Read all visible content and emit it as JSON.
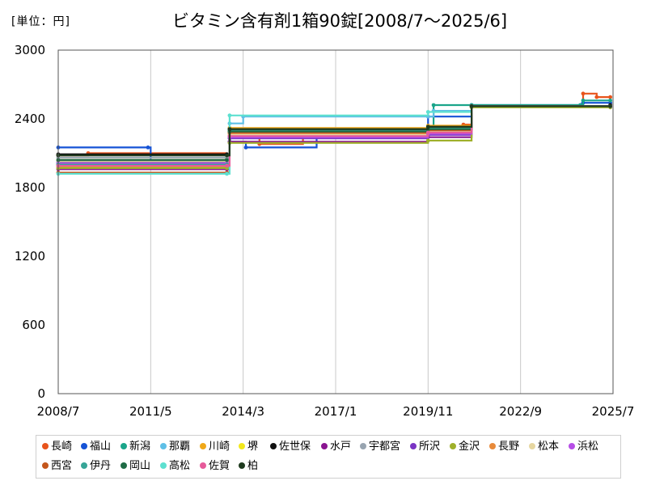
{
  "unit_label": "[単位：円]",
  "chart_data": {
    "type": "line",
    "title": "ビタミン含有剤1箱90錠[2008/7～2025/6]",
    "xlabel": "",
    "ylabel": "",
    "x_ticks": [
      "2008/7",
      "2011/5",
      "2014/3",
      "2017/1",
      "2019/11",
      "2022/9",
      "2025/7"
    ],
    "y_ticks": [
      0,
      600,
      1200,
      1800,
      2400,
      3000
    ],
    "ylim": [
      0,
      3000
    ],
    "xlim": [
      "2008/7",
      "2025/7"
    ],
    "grid": "vertical",
    "legend_position": "bottom",
    "series": [
      {
        "name": "長崎",
        "color": "#e8541c",
        "points": [
          [
            "2008/7",
            2080
          ],
          [
            "2009/6",
            2100
          ],
          [
            "2013/9",
            2050
          ],
          [
            "2013/10",
            2260
          ],
          [
            "2014/9",
            2180
          ],
          [
            "2016/1",
            2250
          ],
          [
            "2019/11",
            2300
          ],
          [
            "2020/12",
            2350
          ],
          [
            "2021/3",
            2510
          ],
          [
            "2024/7",
            2510
          ],
          [
            "2024/8",
            2620
          ],
          [
            "2025/1",
            2590
          ],
          [
            "2025/6",
            2590
          ]
        ]
      },
      {
        "name": "福山",
        "color": "#1553d6",
        "points": [
          [
            "2008/7",
            2150
          ],
          [
            "2011/4",
            2150
          ],
          [
            "2011/5",
            2030
          ],
          [
            "2013/9",
            2030
          ],
          [
            "2013/10",
            2200
          ],
          [
            "2014/4",
            2150
          ],
          [
            "2016/6",
            2280
          ],
          [
            "2019/10",
            2290
          ],
          [
            "2019/11",
            2420
          ],
          [
            "2021/3",
            2520
          ],
          [
            "2024/7",
            2520
          ],
          [
            "2024/8",
            2540
          ],
          [
            "2025/6",
            2540
          ]
        ]
      },
      {
        "name": "新潟",
        "color": "#1aa58a",
        "points": [
          [
            "2008/7",
            2000
          ],
          [
            "2013/9",
            2000
          ],
          [
            "2013/10",
            2300
          ],
          [
            "2019/11",
            2320
          ],
          [
            "2020/1",
            2520
          ],
          [
            "2021/3",
            2520
          ],
          [
            "2024/7",
            2520
          ],
          [
            "2024/8",
            2560
          ],
          [
            "2025/6",
            2560
          ]
        ]
      },
      {
        "name": "那覇",
        "color": "#5fbfe6",
        "points": [
          [
            "2008/7",
            2010
          ],
          [
            "2013/9",
            2010
          ],
          [
            "2013/10",
            2360
          ],
          [
            "2014/3",
            2420
          ],
          [
            "2019/11",
            2420
          ],
          [
            "2020/1",
            2470
          ],
          [
            "2021/3",
            2510
          ],
          [
            "2025/6",
            2510
          ]
        ]
      },
      {
        "name": "川崎",
        "color": "#f0a818",
        "points": [
          [
            "2008/7",
            1980
          ],
          [
            "2013/9",
            1980
          ],
          [
            "2013/10",
            2320
          ],
          [
            "2019/11",
            2340
          ],
          [
            "2021/3",
            2510
          ],
          [
            "2025/6",
            2510
          ]
        ]
      },
      {
        "name": "堺",
        "color": "#f2e81c",
        "points": [
          [
            "2008/7",
            2040
          ],
          [
            "2013/9",
            2040
          ],
          [
            "2013/10",
            2290
          ],
          [
            "2019/11",
            2310
          ],
          [
            "2021/3",
            2510
          ],
          [
            "2025/6",
            2510
          ]
        ]
      },
      {
        "name": "佐世保",
        "color": "#111111",
        "points": [
          [
            "2008/7",
            2090
          ],
          [
            "2013/9",
            2090
          ],
          [
            "2013/10",
            2310
          ],
          [
            "2019/11",
            2330
          ],
          [
            "2021/3",
            2510
          ],
          [
            "2025/6",
            2520
          ]
        ]
      },
      {
        "name": "水戸",
        "color": "#8a1590",
        "points": [
          [
            "2008/7",
            1960
          ],
          [
            "2013/9",
            1960
          ],
          [
            "2013/10",
            2200
          ],
          [
            "2019/11",
            2240
          ],
          [
            "2021/3",
            2510
          ],
          [
            "2025/6",
            2510
          ]
        ]
      },
      {
        "name": "宇都宮",
        "color": "#98a4b0",
        "points": [
          [
            "2008/7",
            2060
          ],
          [
            "2013/9",
            2060
          ],
          [
            "2013/10",
            2250
          ],
          [
            "2019/11",
            2280
          ],
          [
            "2021/3",
            2510
          ],
          [
            "2025/6",
            2510
          ]
        ]
      },
      {
        "name": "所沢",
        "color": "#7a34c4",
        "points": [
          [
            "2008/7",
            2020
          ],
          [
            "2013/9",
            2020
          ],
          [
            "2013/10",
            2230
          ],
          [
            "2019/11",
            2260
          ],
          [
            "2021/3",
            2510
          ],
          [
            "2025/6",
            2510
          ]
        ]
      },
      {
        "name": "金沢",
        "color": "#9fb02a",
        "points": [
          [
            "2008/7",
            1970
          ],
          [
            "2013/9",
            1970
          ],
          [
            "2013/10",
            2190
          ],
          [
            "2019/11",
            2210
          ],
          [
            "2021/3",
            2500
          ],
          [
            "2025/6",
            2500
          ]
        ]
      },
      {
        "name": "長野",
        "color": "#e88a3a",
        "points": [
          [
            "2008/7",
            2000
          ],
          [
            "2013/9",
            2000
          ],
          [
            "2013/10",
            2270
          ],
          [
            "2019/11",
            2300
          ],
          [
            "2021/3",
            2510
          ],
          [
            "2025/6",
            2510
          ]
        ]
      },
      {
        "name": "松本",
        "color": "#e6d6a0",
        "points": [
          [
            "2008/7",
            2030
          ],
          [
            "2013/9",
            2030
          ],
          [
            "2013/10",
            2260
          ],
          [
            "2019/11",
            2290
          ],
          [
            "2021/3",
            2510
          ],
          [
            "2025/6",
            2510
          ]
        ]
      },
      {
        "name": "浜松",
        "color": "#b64ee6",
        "points": [
          [
            "2008/7",
            2010
          ],
          [
            "2013/9",
            2010
          ],
          [
            "2013/10",
            2240
          ],
          [
            "2019/11",
            2270
          ],
          [
            "2021/3",
            2510
          ],
          [
            "2025/6",
            2510
          ]
        ]
      },
      {
        "name": "西宮",
        "color": "#c4561c",
        "points": [
          [
            "2008/7",
            1930
          ],
          [
            "2013/9",
            1930
          ],
          [
            "2013/10",
            2280
          ],
          [
            "2019/11",
            2300
          ],
          [
            "2021/3",
            2510
          ],
          [
            "2025/6",
            2510
          ]
        ]
      },
      {
        "name": "伊丹",
        "color": "#37a597",
        "points": [
          [
            "2008/7",
            2000
          ],
          [
            "2013/9",
            2000
          ],
          [
            "2013/10",
            2300
          ],
          [
            "2019/11",
            2320
          ],
          [
            "2021/3",
            2510
          ],
          [
            "2025/6",
            2510
          ]
        ]
      },
      {
        "name": "岡山",
        "color": "#1f6b45",
        "points": [
          [
            "2008/7",
            2040
          ],
          [
            "2013/9",
            2040
          ],
          [
            "2013/10",
            2290
          ],
          [
            "2019/11",
            2310
          ],
          [
            "2021/3",
            2510
          ],
          [
            "2025/6",
            2510
          ]
        ]
      },
      {
        "name": "高松",
        "color": "#5de0d0",
        "points": [
          [
            "2008/7",
            1920
          ],
          [
            "2013/9",
            1920
          ],
          [
            "2013/10",
            2430
          ],
          [
            "2019/11",
            2460
          ],
          [
            "2021/3",
            2510
          ],
          [
            "2025/6",
            2510
          ]
        ]
      },
      {
        "name": "佐賀",
        "color": "#e65a9a",
        "points": [
          [
            "2008/7",
            1990
          ],
          [
            "2013/9",
            1990
          ],
          [
            "2013/10",
            2250
          ],
          [
            "2019/11",
            2280
          ],
          [
            "2021/3",
            2510
          ],
          [
            "2025/6",
            2510
          ]
        ]
      },
      {
        "name": "柏",
        "color": "#1e3a1e",
        "points": [
          [
            "2008/7",
            2080
          ],
          [
            "2013/9",
            2080
          ],
          [
            "2013/10",
            2310
          ],
          [
            "2019/11",
            2330
          ],
          [
            "2021/3",
            2510
          ],
          [
            "2025/6",
            2510
          ]
        ]
      }
    ]
  }
}
